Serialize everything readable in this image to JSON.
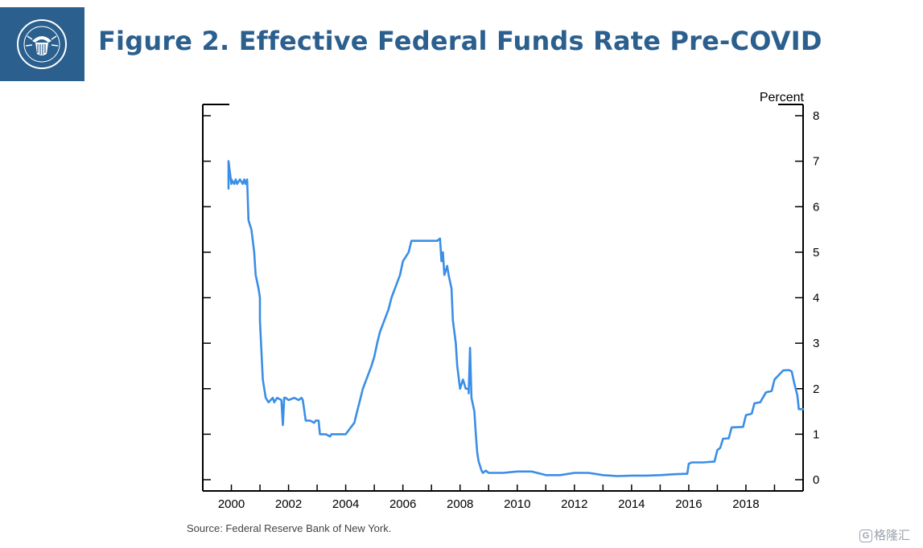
{
  "header": {
    "title": "Figure 2. Effective Federal Funds Rate Pre-COVID",
    "logo_icon": "federal-reserve-seal-icon",
    "logo_color": "#2b5f8e"
  },
  "footer": {
    "source": "Source: Federal Reserve Bank of New York.",
    "watermark": "格隆汇"
  },
  "chart_data": {
    "type": "line",
    "title": "",
    "xlabel": "",
    "ylabel": "Percent",
    "xlim": [
      1999.0,
      2020.0
    ],
    "ylim": [
      0,
      8
    ],
    "xticks": [
      "2000",
      "2002",
      "2004",
      "2006",
      "2008",
      "2010",
      "2012",
      "2014",
      "2016",
      "2018"
    ],
    "yticks": [
      "0",
      "1",
      "2",
      "3",
      "4",
      "5",
      "6",
      "7",
      "8"
    ],
    "yaxis_side": "right",
    "grid": false,
    "legend": "none",
    "series_color": "#3a8ee6",
    "series": [
      {
        "x": [
          1999.9,
          1999.9,
          2000.0,
          2000.0,
          2000.1,
          2000.15,
          2000.2,
          2000.3,
          2000.4,
          2000.45,
          2000.5,
          2000.55,
          2000.6,
          2000.7,
          2000.8,
          2000.85,
          2000.95,
          2001.0,
          2001.0,
          2001.0,
          2001.1,
          2001.2,
          2001.3,
          2001.45,
          2001.5,
          2001.6,
          2001.75,
          2001.8,
          2001.85,
          2001.9,
          2002.0,
          2002.2,
          2002.35,
          2002.45,
          2002.5,
          2002.6,
          2002.75,
          2002.9,
          2002.95,
          2003.05,
          2003.1,
          2003.3,
          2003.45,
          2003.5,
          2003.6,
          2003.8,
          2003.95,
          2004.0,
          2004.3,
          2004.4,
          2004.5,
          2004.6,
          2004.75,
          2004.9,
          2005.0,
          2005.1,
          2005.2,
          2005.35,
          2005.5,
          2005.6,
          2005.75,
          2005.9,
          2006.0,
          2006.2,
          2006.3,
          2006.4,
          2006.5,
          2006.8,
          2007.0,
          2007.2,
          2007.3,
          2007.35,
          2007.4,
          2007.45,
          2007.55,
          2007.6,
          2007.7,
          2007.75,
          2007.85,
          2007.9,
          2008.0,
          2008.1,
          2008.2,
          2008.3,
          2008.3,
          2008.35,
          2008.4,
          2008.5,
          2008.55,
          2008.6,
          2008.65,
          2008.7,
          2008.75,
          2008.8,
          2008.9,
          2009.0,
          2009.5,
          2010.0,
          2010.5,
          2011.0,
          2011.5,
          2012.0,
          2012.5,
          2013.0,
          2013.5,
          2014.0,
          2014.5,
          2015.0,
          2015.5,
          2015.95,
          2016.0,
          2016.1,
          2016.5,
          2016.9,
          2017.0,
          2017.1,
          2017.2,
          2017.4,
          2017.5,
          2017.9,
          2018.0,
          2018.2,
          2018.3,
          2018.5,
          2018.7,
          2018.9,
          2019.0,
          2019.3,
          2019.5,
          2019.6,
          2019.7,
          2019.8,
          2019.85,
          2020.0
        ],
        "y": [
          6.4,
          7.0,
          6.5,
          6.6,
          6.5,
          6.6,
          6.5,
          6.6,
          6.5,
          6.6,
          6.5,
          6.6,
          5.7,
          5.5,
          5.0,
          4.5,
          4.2,
          4.0,
          3.8,
          3.5,
          2.2,
          1.8,
          1.7,
          1.8,
          1.7,
          1.8,
          1.75,
          1.2,
          1.8,
          1.8,
          1.75,
          1.8,
          1.75,
          1.8,
          1.75,
          1.3,
          1.3,
          1.25,
          1.3,
          1.3,
          1.0,
          1.0,
          0.95,
          1.0,
          1.0,
          1.0,
          1.0,
          1.0,
          1.25,
          1.5,
          1.75,
          2.0,
          2.25,
          2.5,
          2.7,
          3.0,
          3.25,
          3.5,
          3.75,
          4.0,
          4.25,
          4.5,
          4.8,
          5.0,
          5.25,
          5.25,
          5.25,
          5.25,
          5.25,
          5.25,
          5.3,
          4.8,
          5.0,
          4.5,
          4.7,
          4.5,
          4.2,
          3.5,
          3.0,
          2.5,
          2.0,
          2.2,
          2.0,
          2.0,
          1.9,
          2.9,
          1.8,
          1.5,
          1.0,
          0.6,
          0.4,
          0.3,
          0.2,
          0.15,
          0.2,
          0.15,
          0.15,
          0.18,
          0.18,
          0.1,
          0.1,
          0.15,
          0.15,
          0.1,
          0.08,
          0.09,
          0.09,
          0.1,
          0.12,
          0.13,
          0.35,
          0.38,
          0.38,
          0.4,
          0.65,
          0.7,
          0.9,
          0.91,
          1.15,
          1.16,
          1.42,
          1.45,
          1.68,
          1.7,
          1.92,
          1.95,
          2.2,
          2.4,
          2.41,
          2.38,
          2.1,
          1.85,
          1.55,
          1.55
        ]
      }
    ]
  }
}
